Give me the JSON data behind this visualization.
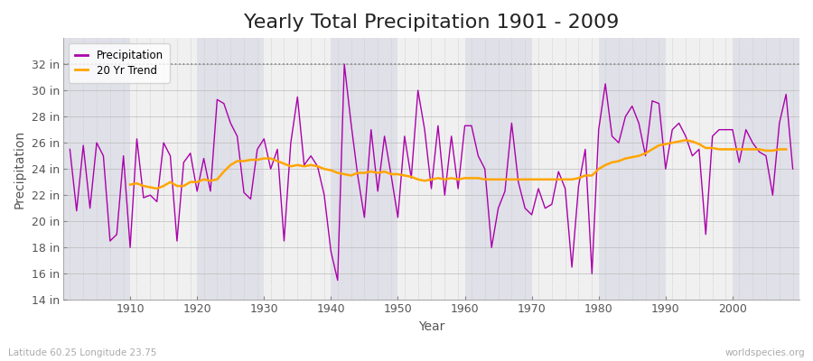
{
  "title": "Yearly Total Precipitation 1901 - 2009",
  "ylabel": "Precipitation",
  "xlabel": "Year",
  "subtitle_left": "Latitude 60.25 Longitude 23.75",
  "subtitle_right": "worldspecies.org",
  "years": [
    1901,
    1902,
    1903,
    1904,
    1905,
    1906,
    1907,
    1908,
    1909,
    1910,
    1911,
    1912,
    1913,
    1914,
    1915,
    1916,
    1917,
    1918,
    1919,
    1920,
    1921,
    1922,
    1923,
    1924,
    1925,
    1926,
    1927,
    1928,
    1929,
    1930,
    1931,
    1932,
    1933,
    1934,
    1935,
    1936,
    1937,
    1938,
    1939,
    1940,
    1941,
    1942,
    1943,
    1944,
    1945,
    1946,
    1947,
    1948,
    1949,
    1950,
    1951,
    1952,
    1953,
    1954,
    1955,
    1956,
    1957,
    1958,
    1959,
    1960,
    1961,
    1962,
    1963,
    1964,
    1965,
    1966,
    1967,
    1968,
    1969,
    1970,
    1971,
    1972,
    1973,
    1974,
    1975,
    1976,
    1977,
    1978,
    1979,
    1980,
    1981,
    1982,
    1983,
    1984,
    1985,
    1986,
    1987,
    1988,
    1989,
    1990,
    1991,
    1992,
    1993,
    1994,
    1995,
    1996,
    1997,
    1998,
    1999,
    2000,
    2001,
    2002,
    2003,
    2004,
    2005,
    2006,
    2007,
    2008,
    2009
  ],
  "precip": [
    25.5,
    20.8,
    25.8,
    21.0,
    26.0,
    25.0,
    18.5,
    19.0,
    25.0,
    18.0,
    26.3,
    21.8,
    22.0,
    21.5,
    26.0,
    25.0,
    18.5,
    24.5,
    25.2,
    22.3,
    24.8,
    22.3,
    29.3,
    29.0,
    27.5,
    26.5,
    22.2,
    21.7,
    25.5,
    26.3,
    24.0,
    25.5,
    18.5,
    26.0,
    29.5,
    24.3,
    25.0,
    24.2,
    22.0,
    17.7,
    15.5,
    32.0,
    27.5,
    23.5,
    20.3,
    27.0,
    22.3,
    26.5,
    23.5,
    20.3,
    26.5,
    23.3,
    30.0,
    27.0,
    22.5,
    27.3,
    22.0,
    26.5,
    22.5,
    27.3,
    27.3,
    25.0,
    24.0,
    18.0,
    21.0,
    22.3,
    27.5,
    23.0,
    21.0,
    20.5,
    22.5,
    21.0,
    21.3,
    23.8,
    22.5,
    16.5,
    22.7,
    25.5,
    16.0,
    27.0,
    30.5,
    26.5,
    26.0,
    28.0,
    28.8,
    27.5,
    25.0,
    29.2,
    29.0,
    24.0,
    27.0,
    27.5,
    26.5,
    25.0,
    25.5,
    19.0,
    26.5,
    27.0,
    27.0,
    27.0,
    24.5,
    27.0,
    26.0,
    25.3,
    25.0,
    22.0,
    27.5,
    29.7,
    24.0
  ],
  "trend": [
    null,
    null,
    null,
    null,
    null,
    null,
    null,
    null,
    null,
    22.8,
    22.9,
    22.7,
    22.6,
    22.5,
    22.7,
    23.0,
    22.7,
    22.7,
    23.0,
    23.0,
    23.2,
    23.1,
    23.2,
    23.8,
    24.3,
    24.6,
    24.6,
    24.7,
    24.7,
    24.8,
    24.8,
    24.6,
    24.4,
    24.2,
    24.3,
    24.2,
    24.3,
    24.2,
    24.0,
    23.9,
    23.7,
    23.6,
    23.5,
    23.7,
    23.7,
    23.8,
    23.7,
    23.8,
    23.6,
    23.6,
    23.5,
    23.4,
    23.2,
    23.1,
    23.2,
    23.3,
    23.2,
    23.3,
    23.2,
    23.3,
    23.3,
    23.3,
    23.2,
    23.2,
    23.2,
    23.2,
    23.2,
    23.2,
    23.2,
    23.2,
    23.2,
    23.2,
    23.2,
    23.2,
    23.2,
    23.2,
    23.3,
    23.5,
    23.5,
    24.0,
    24.3,
    24.5,
    24.6,
    24.8,
    24.9,
    25.0,
    25.2,
    25.5,
    25.8,
    25.9,
    26.0,
    26.1,
    26.2,
    26.1,
    25.9,
    25.6,
    25.6,
    25.5,
    25.5,
    25.5,
    25.5,
    25.5,
    25.5,
    25.5,
    25.4,
    25.4,
    25.5,
    25.5
  ],
  "precip_color": "#AA00AA",
  "trend_color": "#FFA500",
  "bg_color": "#FFFFFF",
  "plot_bg_color_light": "#F0F0F0",
  "plot_bg_color_dark": "#E0E0E8",
  "ylim_min": 14,
  "ylim_max": 34,
  "yticks": [
    14,
    16,
    18,
    20,
    22,
    24,
    26,
    28,
    30,
    32
  ],
  "ytick_labels": [
    "14 in",
    "16 in",
    "18 in",
    "20 in",
    "22 in",
    "24 in",
    "26 in",
    "28 in",
    "30 in",
    "32 in"
  ],
  "xticks": [
    1910,
    1920,
    1930,
    1940,
    1950,
    1960,
    1970,
    1980,
    1990,
    2000
  ],
  "dotted_line_y": 32,
  "title_fontsize": 16,
  "label_fontsize": 10,
  "tick_fontsize": 9
}
